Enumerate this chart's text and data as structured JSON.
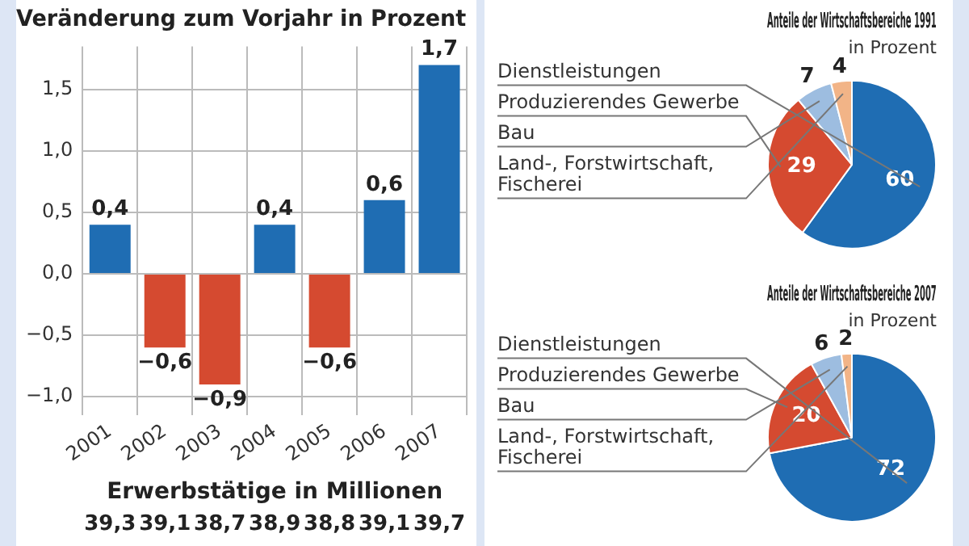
{
  "chart_data": [
    {
      "type": "bar",
      "title": "Veränderung zum Vorjahr in Prozent",
      "categories": [
        "2001",
        "2002",
        "2003",
        "2004",
        "2005",
        "2006",
        "2007"
      ],
      "values": [
        0.4,
        -0.6,
        -0.9,
        0.4,
        -0.6,
        0.6,
        1.7
      ],
      "colors": [
        "#1f6db3",
        "#d54a30",
        "#d54a30",
        "#1f6db3",
        "#d54a30",
        "#1f6db3",
        "#1f6db3"
      ],
      "value_labels": [
        "0,4",
        "−0,6",
        "−0,9",
        "0,4",
        "−0,6",
        "0,6",
        "1,7"
      ],
      "ylim": [
        -1.15,
        1.85
      ],
      "yticks": [
        {
          "value": -1,
          "label": "−1,0"
        },
        {
          "value": -0.5,
          "label": "−0,5"
        },
        {
          "value": 0,
          "label": "0,0"
        },
        {
          "value": 0.5,
          "label": "0,5"
        },
        {
          "value": 1,
          "label": "1,0"
        },
        {
          "value": 1.5,
          "label": "1,5"
        }
      ],
      "grid": true,
      "annotations": [
        "Erwerbstätige in Millionen",
        "39,3",
        "39,1",
        "38,7",
        "38,9",
        "38,8",
        "39,1",
        "39,7"
      ]
    },
    {
      "type": "pie",
      "title": "Anteile der Wirtschaftsbereiche 1991",
      "subtitle": "in Prozent",
      "categories": [
        "Dienstleistungen",
        "Produzierendes Gewerbe",
        "Bau",
        "Land-, Forstwirtschaft, Fischerei"
      ],
      "values": [
        60,
        29,
        7,
        4
      ],
      "colors": [
        "#1f6db3",
        "#d54a30",
        "#9dbde0",
        "#f2b487"
      ],
      "data_labels": true
    },
    {
      "type": "pie",
      "title": "Anteile der Wirtschaftsbereiche 2007",
      "subtitle": "in Prozent",
      "categories": [
        "Dienstleistungen",
        "Produzierendes Gewerbe",
        "Bau",
        "Land-, Forstwirtschaft, Fischerei"
      ],
      "values": [
        72,
        20,
        6,
        2
      ],
      "colors": [
        "#1f6db3",
        "#d54a30",
        "#9dbde0",
        "#f2b487"
      ],
      "data_labels": true
    }
  ]
}
